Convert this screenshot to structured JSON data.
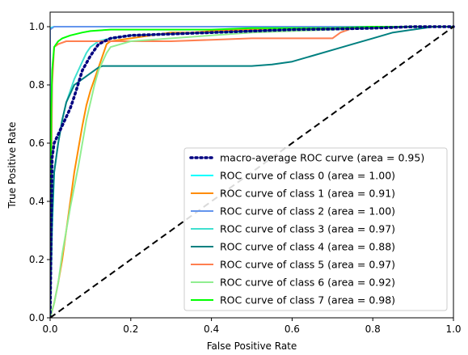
{
  "chart_data": {
    "type": "line",
    "title": "",
    "xlabel": "False Positive Rate",
    "ylabel": "True Positive Rate",
    "xlim": [
      0.0,
      1.0
    ],
    "ylim": [
      0.0,
      1.05
    ],
    "xticks": [
      "0.0",
      "0.2",
      "0.4",
      "0.6",
      "0.8",
      "1.0"
    ],
    "yticks": [
      "0.0",
      "0.2",
      "0.4",
      "0.6",
      "0.8",
      "1.0"
    ],
    "grid": false,
    "legend_position": "lower right",
    "series": [
      {
        "name": "macro-average ROC curve (area = 0.95)",
        "color": "#000080",
        "style": "dotted",
        "x": [
          0.0,
          0.005,
          0.01,
          0.02,
          0.03,
          0.04,
          0.05,
          0.06,
          0.08,
          0.1,
          0.12,
          0.15,
          0.2,
          0.3,
          0.4,
          0.5,
          0.6,
          0.7,
          0.8,
          0.9,
          1.0
        ],
        "y": [
          0.0,
          0.55,
          0.6,
          0.63,
          0.66,
          0.69,
          0.72,
          0.76,
          0.85,
          0.9,
          0.94,
          0.96,
          0.97,
          0.975,
          0.98,
          0.985,
          0.99,
          0.992,
          0.995,
          1.0,
          1.0
        ]
      },
      {
        "name": "ROC curve of class 0 (area = 1.00)",
        "color": "#00ffff",
        "style": "solid",
        "x": [
          0.0,
          0.0,
          0.01,
          1.0
        ],
        "y": [
          0.0,
          0.995,
          1.0,
          1.0
        ]
      },
      {
        "name": "ROC curve of class 1 (area = 0.91)",
        "color": "#ff8c00",
        "style": "solid",
        "x": [
          0.0,
          0.01,
          0.02,
          0.03,
          0.04,
          0.05,
          0.06,
          0.07,
          0.08,
          0.09,
          0.1,
          0.11,
          0.12,
          0.13,
          0.14,
          0.15,
          0.2,
          0.25,
          0.3,
          0.35,
          0.4,
          0.5,
          0.6,
          0.7,
          0.8,
          0.9,
          1.0
        ],
        "y": [
          0.0,
          0.05,
          0.12,
          0.2,
          0.3,
          0.4,
          0.5,
          0.58,
          0.66,
          0.73,
          0.78,
          0.82,
          0.86,
          0.9,
          0.94,
          0.95,
          0.96,
          0.97,
          0.98,
          0.98,
          0.985,
          0.99,
          0.99,
          0.995,
          1.0,
          1.0,
          1.0
        ]
      },
      {
        "name": "ROC curve of class 2 (area = 1.00)",
        "color": "#6495ed",
        "style": "solid",
        "x": [
          0.0,
          0.0,
          0.01,
          1.0
        ],
        "y": [
          0.0,
          0.99,
          1.0,
          1.0
        ]
      },
      {
        "name": "ROC curve of class 3 (area = 0.97)",
        "color": "#40e0d0",
        "style": "solid",
        "x": [
          0.0,
          0.005,
          0.01,
          0.02,
          0.03,
          0.04,
          0.05,
          0.06,
          0.07,
          0.08,
          0.09,
          0.1,
          0.12,
          0.15,
          0.2,
          0.3,
          0.4,
          0.5,
          0.6,
          0.7,
          0.8,
          0.85,
          0.9,
          1.0
        ],
        "y": [
          0.0,
          0.3,
          0.5,
          0.6,
          0.68,
          0.74,
          0.78,
          0.82,
          0.85,
          0.88,
          0.91,
          0.93,
          0.95,
          0.96,
          0.97,
          0.975,
          0.98,
          0.985,
          0.99,
          0.99,
          0.995,
          1.0,
          1.0,
          1.0
        ]
      },
      {
        "name": "ROC curve of class 4 (area = 0.88)",
        "color": "#008080",
        "style": "solid",
        "x": [
          0.0,
          0.005,
          0.01,
          0.02,
          0.03,
          0.04,
          0.05,
          0.06,
          0.08,
          0.1,
          0.12,
          0.13,
          0.2,
          0.3,
          0.4,
          0.5,
          0.55,
          0.6,
          0.65,
          0.7,
          0.75,
          0.8,
          0.85,
          0.9,
          0.95,
          1.0
        ],
        "y": [
          0.0,
          0.35,
          0.5,
          0.6,
          0.68,
          0.74,
          0.77,
          0.8,
          0.82,
          0.84,
          0.86,
          0.865,
          0.865,
          0.865,
          0.865,
          0.865,
          0.87,
          0.88,
          0.9,
          0.92,
          0.94,
          0.96,
          0.98,
          0.99,
          1.0,
          1.0
        ]
      },
      {
        "name": "ROC curve of class 5 (area = 0.97)",
        "color": "#ff7f50",
        "style": "solid",
        "x": [
          0.0,
          0.005,
          0.01,
          0.02,
          0.04,
          0.1,
          0.2,
          0.3,
          0.4,
          0.5,
          0.6,
          0.7,
          0.72,
          0.75,
          0.8,
          0.9,
          1.0
        ],
        "y": [
          0.0,
          0.8,
          0.93,
          0.94,
          0.95,
          0.95,
          0.95,
          0.95,
          0.955,
          0.96,
          0.96,
          0.96,
          0.98,
          0.995,
          1.0,
          1.0,
          1.0
        ]
      },
      {
        "name": "ROC curve of class 6 (area = 0.92)",
        "color": "#90ee90",
        "style": "solid",
        "x": [
          0.0,
          0.01,
          0.02,
          0.03,
          0.04,
          0.05,
          0.06,
          0.07,
          0.08,
          0.09,
          0.1,
          0.11,
          0.12,
          0.13,
          0.14,
          0.15,
          0.2,
          0.3,
          0.4,
          0.5,
          0.6,
          0.7,
          0.8,
          0.9,
          1.0
        ],
        "y": [
          0.0,
          0.05,
          0.12,
          0.22,
          0.3,
          0.38,
          0.45,
          0.52,
          0.6,
          0.68,
          0.74,
          0.8,
          0.85,
          0.88,
          0.91,
          0.93,
          0.95,
          0.96,
          0.97,
          0.98,
          0.985,
          0.99,
          0.995,
          1.0,
          1.0
        ]
      },
      {
        "name": "ROC curve of class 7 (area = 0.98)",
        "color": "#00ff00",
        "style": "solid",
        "x": [
          0.0,
          0.003,
          0.005,
          0.01,
          0.02,
          0.03,
          0.05,
          0.08,
          0.1,
          0.15,
          0.2,
          0.3,
          0.4,
          0.5,
          0.6,
          0.7,
          0.8,
          0.85,
          0.9,
          1.0
        ],
        "y": [
          0.0,
          0.72,
          0.85,
          0.93,
          0.95,
          0.96,
          0.97,
          0.98,
          0.985,
          0.99,
          0.99,
          0.99,
          0.99,
          0.995,
          0.995,
          0.995,
          1.0,
          1.0,
          1.0,
          1.0
        ]
      }
    ],
    "reference_line": {
      "color": "#000000",
      "style": "dashed",
      "x": [
        0.0,
        1.0
      ],
      "y": [
        0.0,
        1.0
      ]
    }
  }
}
